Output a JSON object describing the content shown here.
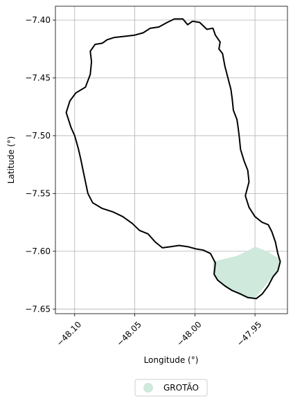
{
  "chart_data": {
    "type": "map",
    "xlabel": "Longitude (°)",
    "ylabel": "Latitude (°)",
    "xlim": [
      -48.116,
      -47.923
    ],
    "ylim": [
      -7.654,
      -7.388
    ],
    "grid": true,
    "x_ticks": [
      {
        "value": -48.1,
        "label": "−48.10"
      },
      {
        "value": -48.05,
        "label": "−48.05"
      },
      {
        "value": -48.0,
        "label": "−48.00"
      },
      {
        "value": -47.95,
        "label": "−47.95"
      }
    ],
    "y_ticks": [
      {
        "value": -7.4,
        "label": "−7.40"
      },
      {
        "value": -7.45,
        "label": "−7.45"
      },
      {
        "value": -7.5,
        "label": "−7.50"
      },
      {
        "value": -7.55,
        "label": "−7.55"
      },
      {
        "value": -7.6,
        "label": "−7.60"
      },
      {
        "value": -7.65,
        "label": "−7.65"
      }
    ],
    "boundary": {
      "stroke": "#000000",
      "coords": [
        [
          -48.073,
          -7.417
        ],
        [
          -48.067,
          -7.415
        ],
        [
          -48.058,
          -7.414
        ],
        [
          -48.05,
          -7.413
        ],
        [
          -48.043,
          -7.411
        ],
        [
          -48.037,
          -7.407
        ],
        [
          -48.03,
          -7.406
        ],
        [
          -48.023,
          -7.402
        ],
        [
          -48.017,
          -7.399
        ],
        [
          -48.01,
          -7.399
        ],
        [
          -48.006,
          -7.404
        ],
        [
          -48.002,
          -7.401
        ],
        [
          -47.996,
          -7.402
        ],
        [
          -47.99,
          -7.408
        ],
        [
          -47.985,
          -7.407
        ],
        [
          -47.983,
          -7.413
        ],
        [
          -47.979,
          -7.419
        ],
        [
          -47.98,
          -7.425
        ],
        [
          -47.977,
          -7.429
        ],
        [
          -47.975,
          -7.44
        ],
        [
          -47.972,
          -7.452
        ],
        [
          -47.97,
          -7.46
        ],
        [
          -47.969,
          -7.468
        ],
        [
          -47.968,
          -7.478
        ],
        [
          -47.965,
          -7.486
        ],
        [
          -47.964,
          -7.493
        ],
        [
          -47.963,
          -7.502
        ],
        [
          -47.962,
          -7.512
        ],
        [
          -47.959,
          -7.522
        ],
        [
          -47.956,
          -7.53
        ],
        [
          -47.955,
          -7.54
        ],
        [
          -47.958,
          -7.552
        ],
        [
          -47.955,
          -7.562
        ],
        [
          -47.95,
          -7.57
        ],
        [
          -47.944,
          -7.575
        ],
        [
          -47.939,
          -7.577
        ],
        [
          -47.936,
          -7.583
        ],
        [
          -47.933,
          -7.592
        ],
        [
          -47.931,
          -7.602
        ],
        [
          -47.929,
          -7.609
        ],
        [
          -47.931,
          -7.617
        ],
        [
          -47.935,
          -7.622
        ],
        [
          -47.939,
          -7.63
        ],
        [
          -47.944,
          -7.637
        ],
        [
          -47.949,
          -7.641
        ],
        [
          -47.956,
          -7.64
        ],
        [
          -47.962,
          -7.637
        ],
        [
          -47.969,
          -7.634
        ],
        [
          -47.975,
          -7.63
        ],
        [
          -47.981,
          -7.625
        ],
        [
          -47.984,
          -7.62
        ],
        [
          -47.983,
          -7.61
        ],
        [
          -47.987,
          -7.602
        ],
        [
          -47.993,
          -7.599
        ],
        [
          -47.999,
          -7.598
        ],
        [
          -48.006,
          -7.596
        ],
        [
          -48.013,
          -7.595
        ],
        [
          -48.02,
          -7.596
        ],
        [
          -48.027,
          -7.597
        ],
        [
          -48.033,
          -7.592
        ],
        [
          -48.039,
          -7.585
        ],
        [
          -48.046,
          -7.582
        ],
        [
          -48.052,
          -7.576
        ],
        [
          -48.06,
          -7.57
        ],
        [
          -48.068,
          -7.566
        ],
        [
          -48.077,
          -7.563
        ],
        [
          -48.085,
          -7.558
        ],
        [
          -48.089,
          -7.55
        ],
        [
          -48.091,
          -7.54
        ],
        [
          -48.093,
          -7.53
        ],
        [
          -48.095,
          -7.52
        ],
        [
          -48.097,
          -7.511
        ],
        [
          -48.1,
          -7.5
        ],
        [
          -48.103,
          -7.493
        ],
        [
          -48.107,
          -7.48
        ],
        [
          -48.104,
          -7.47
        ],
        [
          -48.099,
          -7.463
        ],
        [
          -48.091,
          -7.458
        ],
        [
          -48.087,
          -7.447
        ],
        [
          -48.086,
          -7.436
        ],
        [
          -48.087,
          -7.427
        ],
        [
          -48.083,
          -7.421
        ],
        [
          -48.077,
          -7.42
        ],
        [
          -48.073,
          -7.417
        ]
      ]
    },
    "filled_region": {
      "name": "GROTÃO",
      "color": "#cfe9dc",
      "coords": [
        [
          -47.985,
          -7.609
        ],
        [
          -47.965,
          -7.604
        ],
        [
          -47.955,
          -7.599
        ],
        [
          -47.95,
          -7.596
        ],
        [
          -47.94,
          -7.6
        ],
        [
          -47.929,
          -7.607
        ],
        [
          -47.93,
          -7.615
        ],
        [
          -47.937,
          -7.624
        ],
        [
          -47.944,
          -7.633
        ],
        [
          -47.95,
          -7.641
        ],
        [
          -47.957,
          -7.641
        ],
        [
          -47.966,
          -7.636
        ],
        [
          -47.975,
          -7.631
        ],
        [
          -47.982,
          -7.625
        ],
        [
          -47.985,
          -7.618
        ],
        [
          -47.985,
          -7.609
        ]
      ]
    }
  },
  "legend": {
    "label": "GROTÃO",
    "marker_color": "#cfe9dc"
  }
}
